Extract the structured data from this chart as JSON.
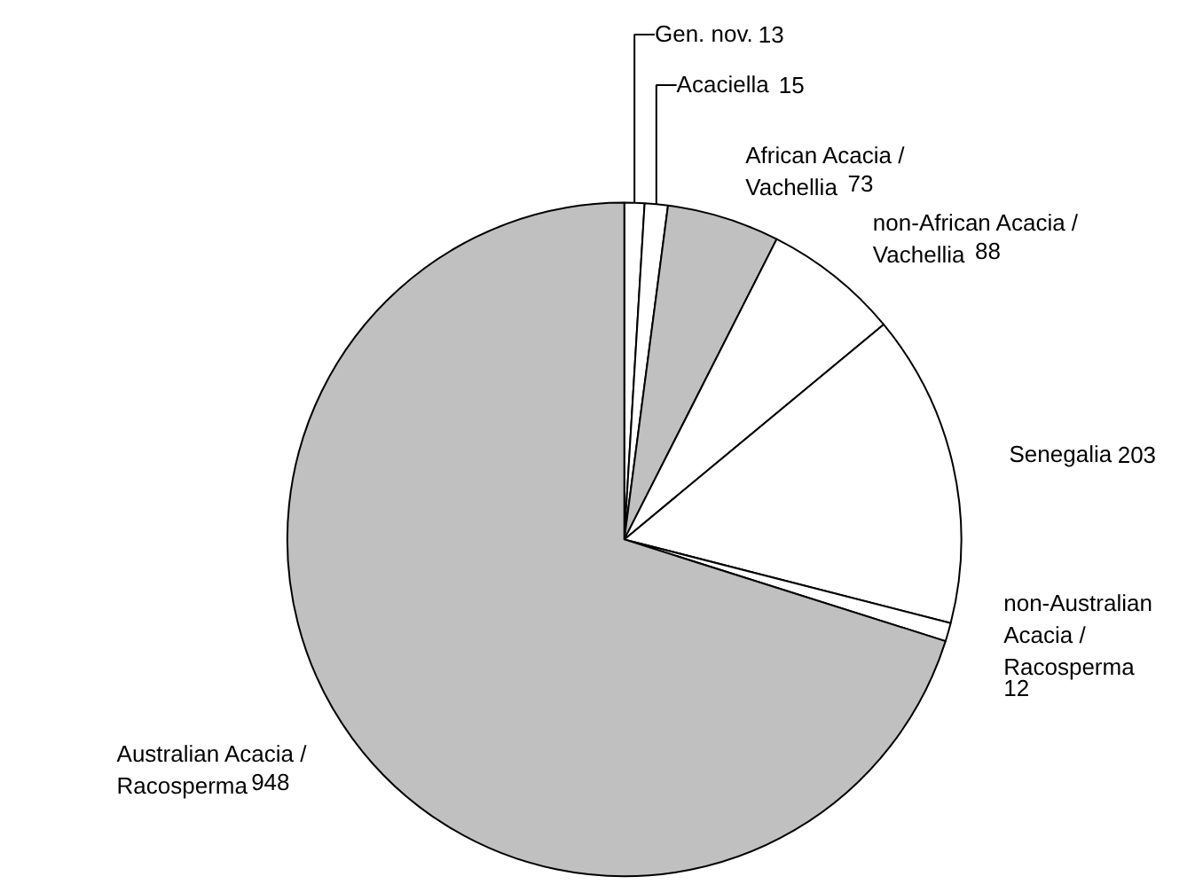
{
  "chart_data": {
    "type": "pie",
    "categories": [
      "Gen. nov.",
      "Acaciella",
      "African Acacia / Vachellia",
      "non-African Acacia / Vachellia",
      "Senegalia",
      "non-Australian Acacia / Racosperma",
      "Australian Acacia / Racosperma"
    ],
    "values": [
      13,
      15,
      73,
      88,
      203,
      12,
      948
    ],
    "colors": [
      "#ffffff",
      "#ffffff",
      "#c0c0c0",
      "#ffffff",
      "#ffffff",
      "#ffffff",
      "#c0c0c0"
    ],
    "data_labels": true
  }
}
